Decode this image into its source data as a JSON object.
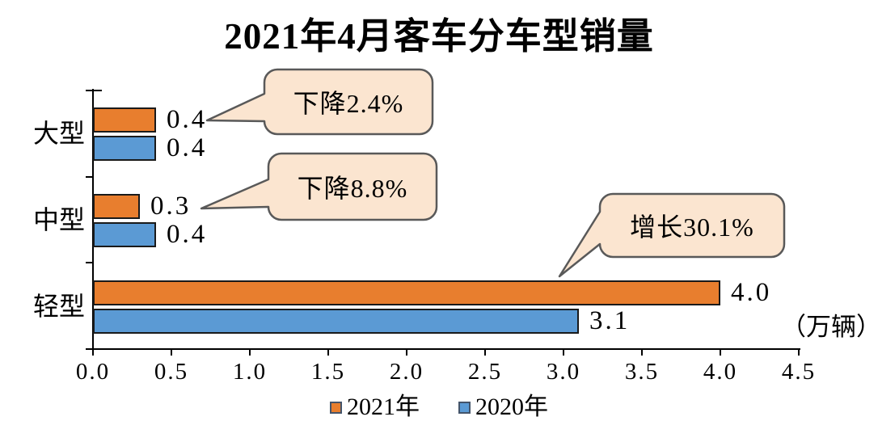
{
  "title": "2021年4月客车分车型销量",
  "unit_label": "（万辆）",
  "chart_data": {
    "type": "bar",
    "orientation": "horizontal",
    "title": "2021年4月客车分车型销量",
    "categories": [
      "大型",
      "中型",
      "轻型"
    ],
    "category_keys": [
      "large",
      "medium",
      "light"
    ],
    "series": [
      {
        "name": "2021年",
        "key": "2021",
        "color": "#E87E2E",
        "values": [
          0.4,
          0.3,
          4.0
        ]
      },
      {
        "name": "2020年",
        "key": "2020",
        "color": "#5B9AD4",
        "values": [
          0.4,
          0.4,
          3.1
        ]
      }
    ],
    "value_labels": {
      "2021": [
        "0.4",
        "0.3",
        "4.0"
      ],
      "2020": [
        "0.4",
        "0.4",
        "3.1"
      ]
    },
    "annotations": [
      {
        "text": "下降2.4%",
        "category": "大型"
      },
      {
        "text": "下降8.8%",
        "category": "中型"
      },
      {
        "text": "增长30.1%",
        "category": "轻型"
      }
    ],
    "xlabel": "（万辆）",
    "xlim": [
      0,
      4.5
    ],
    "xtick_labels": [
      "0.0",
      "0.5",
      "1.0",
      "1.5",
      "2.0",
      "2.5",
      "3.0",
      "3.5",
      "4.0",
      "4.5"
    ],
    "grid": false,
    "legend_position": "bottom"
  },
  "colors": {
    "series_2021": "#E87E2E",
    "series_2020": "#5B9AD4",
    "bar_border": "#1A1A1A",
    "callout_fill": "#FBE5D0",
    "callout_border": "#595959",
    "axis": "#000000",
    "text": "#000000",
    "background": "#FFFFFF"
  }
}
